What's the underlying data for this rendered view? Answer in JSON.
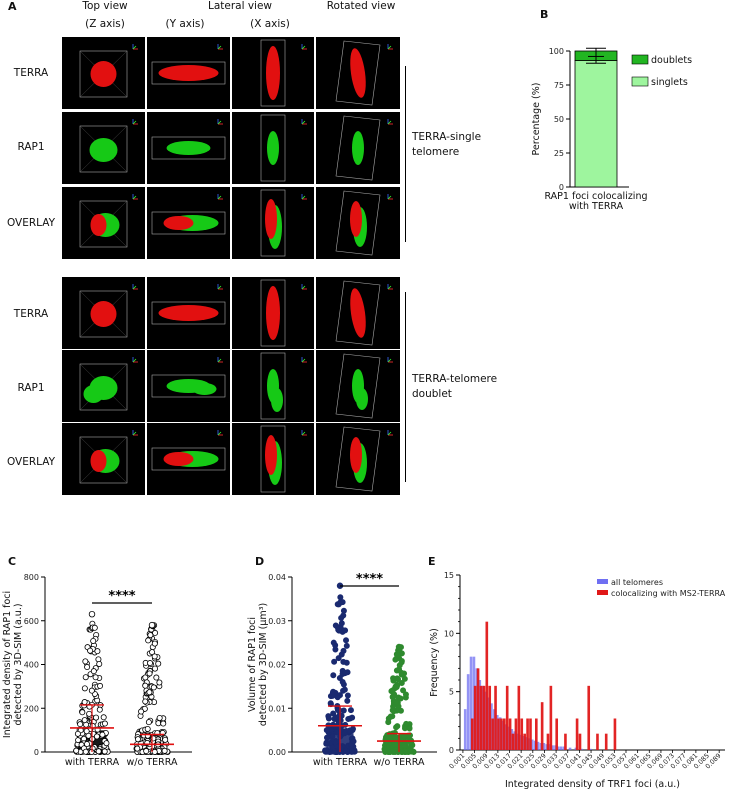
{
  "panel_a": {
    "letter": "A",
    "column_headers": [
      "Top view",
      "(Z axis)",
      "Lateral view",
      "(Y axis)",
      "(X axis)",
      "Rotated view"
    ],
    "row_labels": [
      "TERRA",
      "RAP1",
      "OVERLAY",
      "TERRA",
      "RAP1",
      "OVERLAY"
    ],
    "group_labels": [
      "TERRA-single",
      "telomere",
      "TERRA-telomere",
      "doublet"
    ]
  },
  "chart_data": [
    {
      "panel": "B",
      "type": "bar",
      "stacked": true,
      "categories": [
        "RAP1 foci colocalizing with TERRA"
      ],
      "category_lines": [
        "RAP1 foci colocalizing",
        "with TERRA"
      ],
      "series": [
        {
          "name": "singlets",
          "values": [
            93
          ],
          "color": "#9ef59e"
        },
        {
          "name": "doublets",
          "values": [
            7
          ],
          "color": "#22b522"
        }
      ],
      "error_bar": {
        "center": 96,
        "low": 91,
        "high": 102
      },
      "ylabel": "Percentage (%)",
      "ylim": [
        0,
        100
      ],
      "yticks": [
        0,
        25,
        50,
        75,
        100
      ],
      "legend_position": "right"
    },
    {
      "panel": "C",
      "type": "scatter",
      "subtype": "dot-plot",
      "categories": [
        "with TERRA",
        "w/o TERRA"
      ],
      "ylabel_lines": [
        "Integrated density of RAP1 foci",
        "detected by 3D-SIM (a.u.)"
      ],
      "ylim": [
        0,
        800
      ],
      "yticks": [
        0,
        200,
        400,
        600,
        800
      ],
      "means": [
        110,
        35
      ],
      "sd_high": [
        215,
        80
      ],
      "max_values": [
        630,
        580
      ],
      "significance": "****",
      "point_color": "#000000",
      "mean_color": "#e01010"
    },
    {
      "panel": "D",
      "type": "scatter",
      "subtype": "dot-plot",
      "categories": [
        "with TERRA",
        "w/o TERRA"
      ],
      "ylabel_lines": [
        "Volume of RAP1 foci",
        "detected by 3D-SIM (µm³)"
      ],
      "ylim": [
        0,
        0.04
      ],
      "yticks": [
        "0.00",
        "0.01",
        "0.02",
        "0.03",
        "0.04"
      ],
      "means": [
        0.006,
        0.0025
      ],
      "sd_high": [
        0.0105,
        0.0042
      ],
      "max_values": [
        0.038,
        0.024
      ],
      "significance": "****",
      "point_colors": [
        "#1a2a70",
        "#2f8a2f"
      ],
      "mean_color": "#e01010"
    },
    {
      "panel": "E",
      "type": "bar",
      "subtype": "histogram",
      "xlabel": "Integrated density of TRF1 foci (a.u.)",
      "ylabel": "Frequency (%)",
      "ylim": [
        0,
        15
      ],
      "yticks": [
        0,
        5,
        10,
        15
      ],
      "xticks": [
        "0.001",
        "0.005",
        "0.009",
        "0.013",
        "0.017",
        "0.021",
        "0.025",
        "0.029",
        "0.033",
        "0.037",
        "0.041",
        "0.045",
        "0.049",
        "0.053",
        "0.057",
        "0.061",
        "0.065",
        "0.069",
        "0.073",
        "0.077",
        "0.081",
        "0.085",
        "0.089"
      ],
      "legend_position": "top-right",
      "series": [
        {
          "name": "all telomeres",
          "color": "#6f6ff2",
          "x": [
            0.002,
            0.003,
            0.004,
            0.005,
            0.006,
            0.007,
            0.008,
            0.009,
            0.01,
            0.011,
            0.012,
            0.013,
            0.014,
            0.015,
            0.016,
            0.017,
            0.018,
            0.019,
            0.02,
            0.021,
            0.022,
            0.023,
            0.024,
            0.025,
            0.026,
            0.027,
            0.028,
            0.029,
            0.03,
            0.031,
            0.032,
            0.033,
            0.034,
            0.035,
            0.036,
            0.038,
            0.04,
            0.042,
            0.045
          ],
          "values": [
            3.5,
            6.5,
            8.0,
            8.0,
            7.0,
            6.0,
            5.5,
            5.0,
            4.5,
            4.0,
            3.5,
            3.0,
            2.8,
            2.5,
            2.2,
            2.0,
            1.8,
            1.6,
            1.4,
            1.3,
            1.2,
            1.1,
            1.0,
            0.9,
            0.8,
            0.7,
            0.6,
            0.6,
            0.5,
            0.5,
            0.4,
            0.4,
            0.3,
            0.3,
            0.3,
            0.2,
            0.2,
            0.1,
            0.1
          ]
        },
        {
          "name": "colocalizing with MS2-TERRA",
          "color": "#e01818",
          "x": [
            0.004,
            0.005,
            0.006,
            0.007,
            0.008,
            0.009,
            0.01,
            0.011,
            0.012,
            0.013,
            0.014,
            0.015,
            0.016,
            0.017,
            0.018,
            0.019,
            0.02,
            0.021,
            0.022,
            0.023,
            0.024,
            0.026,
            0.028,
            0.03,
            0.031,
            0.033,
            0.036,
            0.04,
            0.041,
            0.044,
            0.047,
            0.05,
            0.053
          ],
          "values": [
            2.7,
            5.5,
            7.0,
            5.5,
            5.5,
            11.0,
            5.5,
            2.7,
            5.5,
            2.7,
            2.7,
            2.7,
            5.5,
            2.7,
            1.4,
            2.7,
            5.5,
            2.7,
            1.4,
            2.7,
            2.7,
            2.7,
            4.1,
            1.4,
            5.5,
            2.7,
            1.4,
            2.7,
            1.4,
            5.5,
            1.4,
            1.4,
            2.7
          ]
        }
      ]
    }
  ],
  "panel_letters": {
    "b": "B",
    "c": "C",
    "d": "D",
    "e": "E"
  }
}
